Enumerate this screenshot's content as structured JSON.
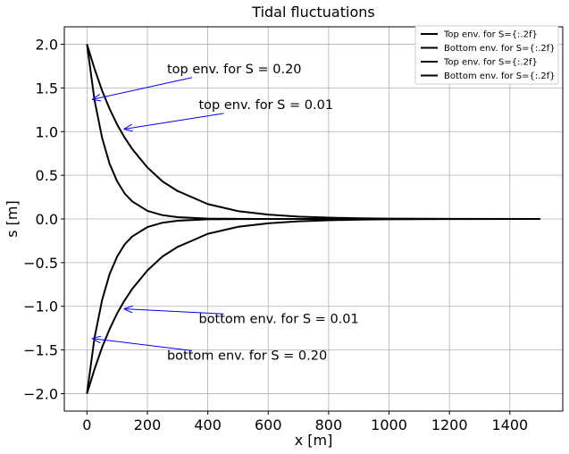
{
  "chart_data": {
    "type": "line",
    "title": "Tidal fluctuations",
    "xlabel": "x [m]",
    "ylabel": "s [m]",
    "xlim": [
      -75,
      1575
    ],
    "ylim": [
      -2.2,
      2.2
    ],
    "xticks": [
      0,
      200,
      400,
      600,
      800,
      1000,
      1200,
      1400
    ],
    "yticks": [
      -2.0,
      -1.5,
      -1.0,
      -0.5,
      0.0,
      0.5,
      1.0,
      1.5,
      2.0
    ],
    "xtick_labels": [
      "0",
      "200",
      "400",
      "600",
      "800",
      "1000",
      "1200",
      "1400"
    ],
    "ytick_labels": [
      "−2.0",
      "−1.5",
      "−1.0",
      "−0.5",
      "0.0",
      "0.5",
      "1.0",
      "1.5",
      "2.0"
    ],
    "grid": true,
    "legend_position": "top-right",
    "line_color": "#000000",
    "annotation_color": "#0000ff",
    "series": [
      {
        "name": "Top    env. for S={:.2f}",
        "x": [
          0,
          25,
          50,
          75,
          100,
          125,
          150,
          200,
          250,
          300,
          400,
          500,
          600,
          700,
          800,
          900,
          1000,
          1200,
          1500
        ],
        "values": [
          2.0,
          1.36,
          0.93,
          0.63,
          0.43,
          0.29,
          0.2,
          0.093,
          0.043,
          0.02,
          0.0043,
          0.0009,
          0.0002,
          0.0,
          0.0,
          0.0,
          0.0,
          0.0,
          0.0
        ]
      },
      {
        "name": "Bottom env. for S={:.2f}",
        "x": [
          0,
          25,
          50,
          75,
          100,
          125,
          150,
          200,
          250,
          300,
          400,
          500,
          600,
          700,
          800,
          900,
          1000,
          1200,
          1500
        ],
        "values": [
          -2.0,
          -1.36,
          -0.93,
          -0.63,
          -0.43,
          -0.29,
          -0.2,
          -0.093,
          -0.043,
          -0.02,
          -0.0043,
          -0.0009,
          -0.0002,
          0.0,
          0.0,
          0.0,
          0.0,
          0.0,
          0.0
        ]
      },
      {
        "name": "Top    env. for S={:.2f}",
        "x": [
          0,
          25,
          50,
          75,
          100,
          125,
          150,
          200,
          250,
          300,
          400,
          500,
          600,
          700,
          800,
          900,
          1000,
          1200,
          1500
        ],
        "values": [
          2.0,
          1.72,
          1.47,
          1.26,
          1.08,
          0.93,
          0.8,
          0.59,
          0.43,
          0.32,
          0.17,
          0.09,
          0.05,
          0.027,
          0.015,
          0.008,
          0.004,
          0.001,
          0.0
        ]
      },
      {
        "name": "Bottom env. for S={:.2f}",
        "x": [
          0,
          25,
          50,
          75,
          100,
          125,
          150,
          200,
          250,
          300,
          400,
          500,
          600,
          700,
          800,
          900,
          1000,
          1200,
          1500
        ],
        "values": [
          -2.0,
          -1.72,
          -1.47,
          -1.26,
          -1.08,
          -0.93,
          -0.8,
          -0.59,
          -0.43,
          -0.32,
          -0.17,
          -0.09,
          -0.05,
          -0.027,
          -0.015,
          -0.008,
          -0.004,
          -0.001,
          0.0
        ]
      }
    ],
    "annotations": [
      {
        "text": "top env. for S = 0.20",
        "x": 265,
        "y": 1.67,
        "arrow_to": [
          20,
          1.37
        ]
      },
      {
        "text": "top env. for S = 0.01",
        "x": 370,
        "y": 1.26,
        "arrow_to": [
          125,
          1.03
        ]
      },
      {
        "text": "bottom env. for S = 0.01",
        "x": 370,
        "y": -1.19,
        "arrow_to": [
          125,
          -1.03
        ]
      },
      {
        "text": "bottom env. for S = 0.20",
        "x": 265,
        "y": -1.61,
        "arrow_to": [
          20,
          -1.37
        ]
      }
    ]
  }
}
